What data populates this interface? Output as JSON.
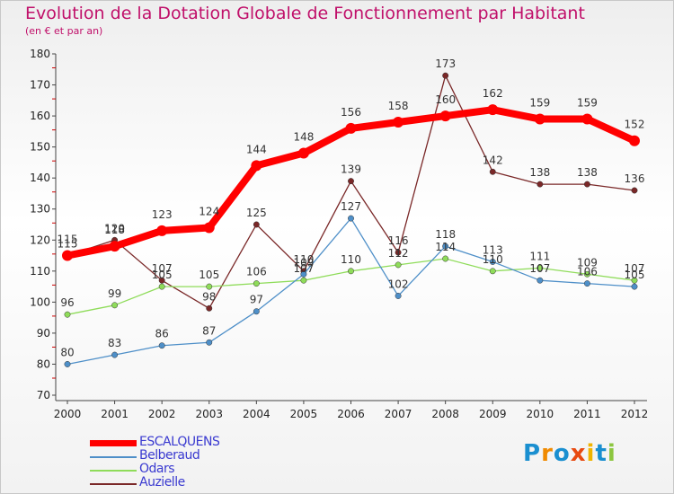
{
  "chart_data": {
    "type": "line",
    "title": "Evolution de la Dotation Globale de Fonctionnement par Habitant",
    "subtitle": "(en € et par an)",
    "xlabel": "",
    "ylabel": "",
    "ylim": [
      70,
      180
    ],
    "yticks": [
      70,
      80,
      90,
      100,
      110,
      120,
      130,
      140,
      150,
      160,
      170,
      180
    ],
    "categories": [
      "2000",
      "2001",
      "2002",
      "2003",
      "2004",
      "2005",
      "2006",
      "2007",
      "2008",
      "2009",
      "2010",
      "2011",
      "2012"
    ],
    "series": [
      {
        "name": "ESCALQUENS",
        "color": "#ff0000",
        "values": [
          115,
          118,
          123,
          124,
          144,
          148,
          156,
          158,
          160,
          162,
          159,
          159,
          152
        ]
      },
      {
        "name": "Belberaud",
        "color": "#4e8fc8",
        "values": [
          80,
          83,
          86,
          87,
          97,
          109,
          127,
          102,
          118,
          113,
          107,
          106,
          105
        ]
      },
      {
        "name": "Odars",
        "color": "#8fdc5a",
        "values": [
          96,
          99,
          105,
          105,
          106,
          107,
          110,
          112,
          114,
          110,
          111,
          109,
          107
        ]
      },
      {
        "name": "Auzielle",
        "color": "#7a2828",
        "values": [
          115,
          120,
          107,
          98,
          125,
          110,
          139,
          116,
          173,
          142,
          138,
          138,
          136
        ]
      }
    ]
  },
  "logo": {
    "text": "Proxiti",
    "letters": [
      "P",
      "r",
      "o",
      "x",
      "i",
      "t",
      "i"
    ],
    "colors": [
      "#1a8fd0",
      "#f08a00",
      "#1a8fd0",
      "#e84a10",
      "#f0b400",
      "#1a8fd0",
      "#8cc63f"
    ]
  }
}
